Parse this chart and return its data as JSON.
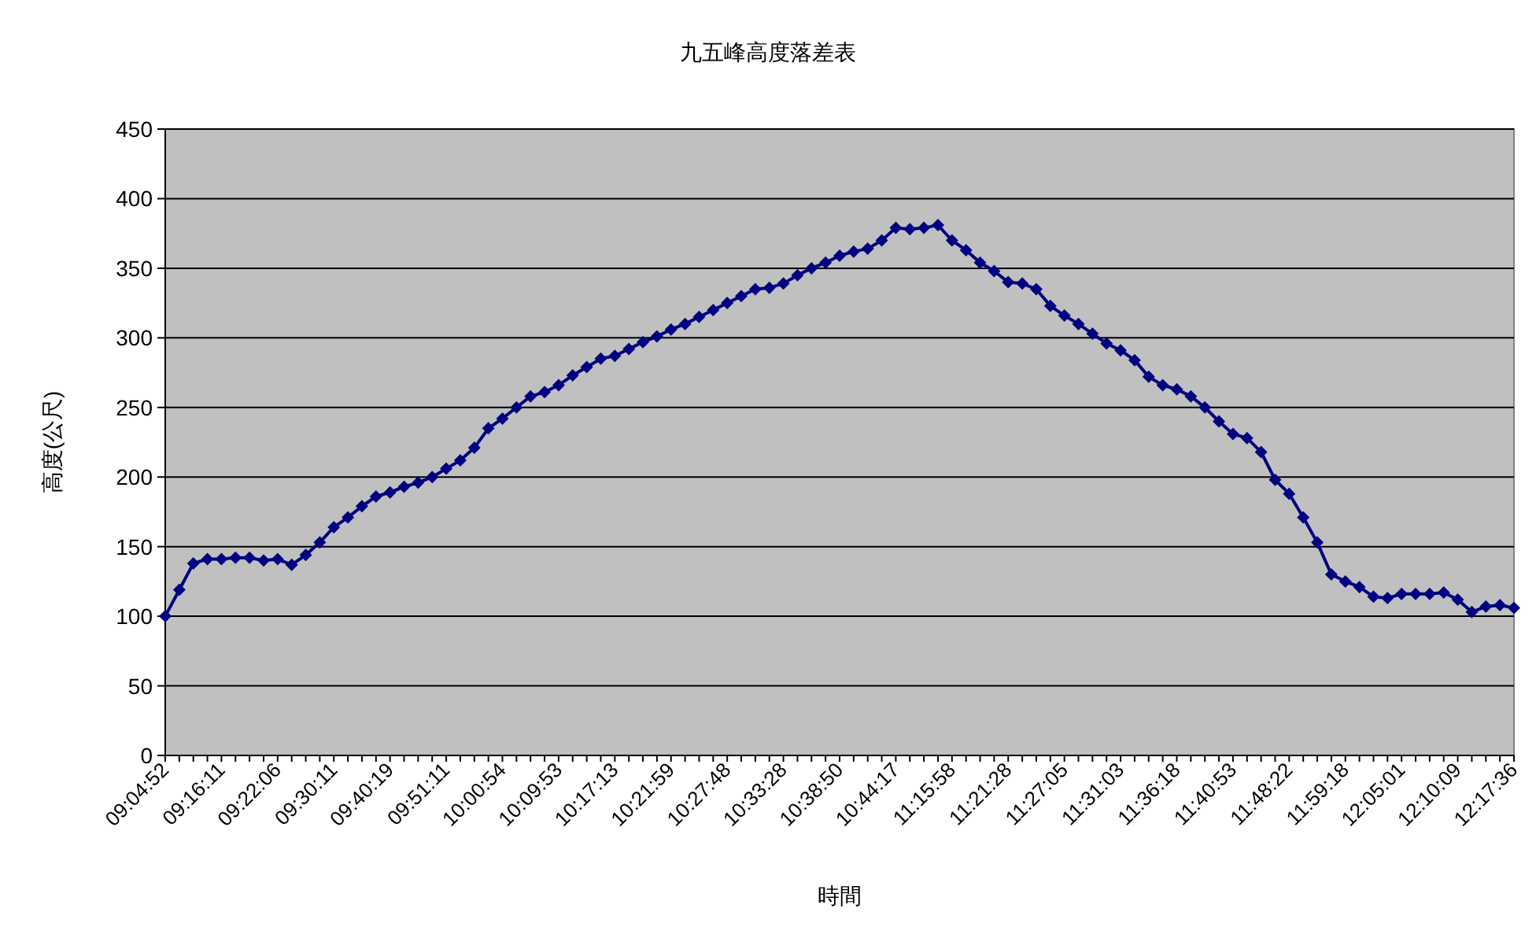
{
  "chart_data": {
    "type": "line",
    "title": "九五峰高度落差表",
    "xlabel": "時間",
    "ylabel": "高度(公尺)",
    "categories": [
      "09:04:52",
      null,
      null,
      null,
      "09:16:11",
      null,
      null,
      null,
      "09:22:06",
      null,
      null,
      null,
      "09:30:11",
      null,
      null,
      null,
      "09:40:19",
      null,
      null,
      null,
      "09:51:11",
      null,
      null,
      null,
      "10:00:54",
      null,
      null,
      null,
      "10:09:53",
      null,
      null,
      null,
      "10:17:13",
      null,
      null,
      null,
      "10:21:59",
      null,
      null,
      null,
      "10:27:48",
      null,
      null,
      null,
      "10:33:28",
      null,
      null,
      null,
      "10:38:50",
      null,
      null,
      null,
      "10:44:17",
      null,
      null,
      null,
      "11:15:58",
      null,
      null,
      null,
      "11:21:28",
      null,
      null,
      null,
      "11:27:05",
      null,
      null,
      null,
      "11:31:03",
      null,
      null,
      null,
      "11:36:18",
      null,
      null,
      null,
      "11:40:53",
      null,
      null,
      null,
      "11:48:22",
      null,
      null,
      null,
      "11:59:18",
      null,
      null,
      null,
      "12:05:01",
      null,
      null,
      null,
      "12:10:09",
      null,
      null,
      null,
      "12:17:36"
    ],
    "series": [
      {
        "color": "#000080",
        "values": [
          100,
          119,
          138,
          141,
          141,
          142,
          142,
          140,
          141,
          137,
          144,
          153,
          164,
          171,
          179,
          186,
          189,
          193,
          196,
          200,
          206,
          212,
          221,
          235,
          242,
          250,
          258,
          261,
          266,
          273,
          279,
          285,
          287,
          292,
          297,
          301,
          306,
          310,
          315,
          320,
          325,
          330,
          335,
          336,
          339,
          345,
          350,
          354,
          359,
          362,
          364,
          370,
          379,
          378,
          379,
          381,
          370,
          363,
          354,
          348,
          340,
          339,
          335,
          323,
          316,
          310,
          303,
          296,
          291,
          284,
          272,
          266,
          263,
          258,
          250,
          240,
          231,
          228,
          218,
          198,
          188,
          171,
          153,
          130,
          125,
          121,
          114,
          113,
          116,
          116,
          116,
          117,
          112,
          103,
          107,
          108,
          106
        ]
      }
    ],
    "ylim": [
      0,
      450
    ],
    "yticks": [
      0,
      50,
      100,
      150,
      200,
      250,
      300,
      350,
      400,
      450
    ],
    "grid": "y",
    "marker": "diamond"
  }
}
